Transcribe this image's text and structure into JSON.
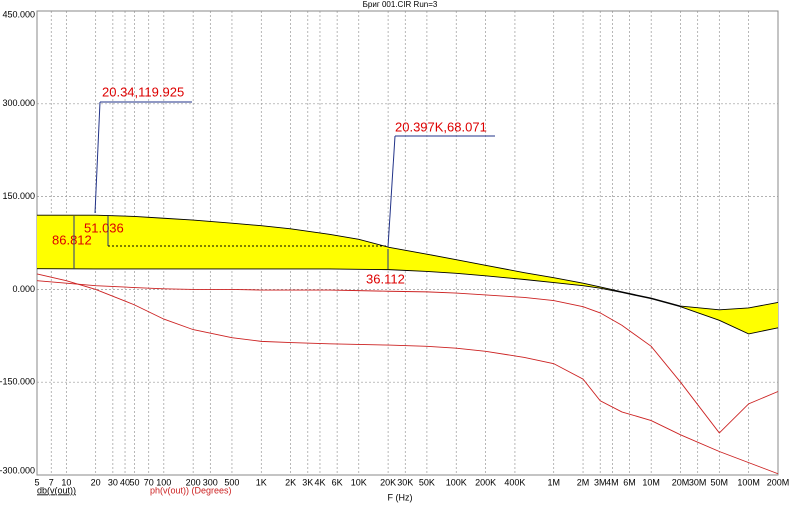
{
  "chart_data": {
    "type": "line",
    "title": "Бриг 001.CIR Run=3",
    "xlabel": "F (Hz)",
    "log_x": true,
    "grid": true,
    "xlim": [
      5,
      200000000
    ],
    "ylim": [
      -300,
      450
    ],
    "xticks": [
      5,
      7,
      10,
      20,
      30,
      40,
      50,
      70,
      100,
      200,
      300,
      500,
      {
        "value": 1000,
        "label": "1K"
      },
      {
        "value": 2000,
        "label": "2K"
      },
      {
        "value": 3000,
        "label": "3K"
      },
      {
        "value": 4000,
        "label": "4K"
      },
      {
        "value": 6000,
        "label": "6K"
      },
      {
        "value": 10000,
        "label": "10K"
      },
      {
        "value": 20000,
        "label": "20K"
      },
      {
        "value": 30000,
        "label": "30K"
      },
      {
        "value": 50000,
        "label": "50K"
      },
      {
        "value": 100000,
        "label": "100K"
      },
      {
        "value": 200000,
        "label": "200K"
      },
      {
        "value": 400000,
        "label": "400K"
      },
      {
        "value": 1000000,
        "label": "1M"
      },
      {
        "value": 2000000,
        "label": "2M"
      },
      {
        "value": 3000000,
        "label": "3M"
      },
      {
        "value": 4000000,
        "label": "4M"
      },
      {
        "value": 6000000,
        "label": "6M"
      },
      {
        "value": 10000000,
        "label": "10M"
      },
      {
        "value": 20000000,
        "label": "20M"
      },
      {
        "value": 30000000,
        "label": "30M"
      },
      {
        "value": 50000000,
        "label": "50M"
      },
      {
        "value": 100000000,
        "label": "100M"
      },
      {
        "value": 200000000,
        "label": "200M"
      }
    ],
    "yticks": [
      {
        "value": 450,
        "label": "450.000"
      },
      {
        "value": 300,
        "label": "300.000"
      },
      {
        "value": 150,
        "label": "150.000"
      },
      {
        "value": 0,
        "label": "0.000"
      },
      {
        "value": -150,
        "label": "-150.000"
      },
      {
        "value": -300,
        "label": "-300.000"
      }
    ],
    "x": [
      5,
      10,
      20,
      50,
      100,
      200,
      500,
      1000,
      2000,
      5000,
      10000,
      20397,
      50000,
      100000,
      200000,
      500000,
      1000000,
      2000000,
      3000000,
      5000000,
      10000000,
      20000000,
      50000000,
      100000000,
      200000000
    ],
    "series": [
      {
        "name": "db(v(out))",
        "color": "#000000",
        "fill": "#ffff00",
        "values": [
          [
            120,
            120,
            119.925,
            118,
            115,
            112,
            107,
            103,
            98,
            89,
            81,
            68.071,
            57,
            48,
            39,
            27,
            19,
            10,
            4,
            -4,
            -14,
            -27,
            -33,
            -30,
            -21
          ],
          [
            33.5,
            33.3,
            33.113,
            33,
            33,
            33,
            33,
            33,
            33,
            33,
            32.5,
            31.959,
            29,
            26,
            22,
            16,
            11,
            6,
            2,
            -5,
            -15,
            -28,
            -50,
            -72,
            -62
          ]
        ]
      },
      {
        "name": "ph(v(out)) (Degrees)",
        "color": "#cc2222",
        "values": [
          [
            14,
            10,
            6,
            3,
            1,
            0,
            0,
            -1,
            -1,
            -1,
            -2,
            -3,
            -4,
            -6,
            -9,
            -13,
            -18,
            -28,
            -38,
            -58,
            -92,
            -150,
            -232,
            -185,
            -165
          ],
          [
            25,
            14,
            0,
            -25,
            -48,
            -65,
            -78,
            -84,
            -86,
            -88,
            -89,
            -90,
            -92,
            -95,
            -100,
            -110,
            -120,
            -145,
            -180,
            -198,
            -212,
            -235,
            -262,
            -280,
            -298
          ]
        ]
      }
    ],
    "annotations": [
      "20.34,119.925",
      "20.397K,68.071",
      "86.812",
      "51.036",
      "36.112"
    ]
  }
}
